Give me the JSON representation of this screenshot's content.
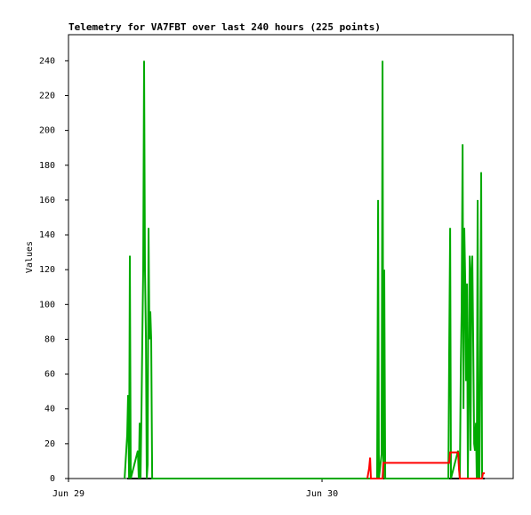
{
  "chart_data": {
    "type": "line",
    "title": "Telemetry for VA7FBT over last 240 hours (225 points)",
    "y_label": "Values",
    "xlim": [
      0,
      42.1
    ],
    "ylim": [
      0,
      255
    ],
    "xticks": [
      {
        "value": 0,
        "label": "Jun 29"
      },
      {
        "value": 24,
        "label": "Jun 30"
      }
    ],
    "yticks": [
      0,
      20,
      40,
      60,
      80,
      100,
      120,
      140,
      160,
      180,
      200,
      220,
      240
    ],
    "series": [
      {
        "color": "#000000",
        "x": [
          5.56,
          39.41
        ],
        "values": [
          0,
          0
        ]
      },
      {
        "color": "#00aa00",
        "x": [
          5.31,
          5.56,
          5.64,
          5.73,
          5.81,
          5.89,
          6.57,
          6.65,
          6.74,
          6.82,
          6.91,
          6.99,
          7.07,
          7.16,
          7.24,
          7.33,
          7.41,
          7.49,
          7.58,
          7.66,
          7.75,
          7.83,
          7.92,
          29.22,
          29.31,
          29.39,
          29.64,
          29.73,
          29.81,
          29.89,
          29.98,
          35.96,
          36.04,
          36.13,
          36.21,
          36.88,
          37.05,
          37.14,
          37.22,
          37.31,
          37.39,
          37.47,
          37.56,
          37.64,
          37.73,
          37.81,
          37.89,
          37.98,
          38.06,
          38.15,
          38.23,
          38.31,
          38.4,
          38.48,
          38.57,
          38.65,
          38.73,
          38.82,
          38.9,
          38.99,
          39.07,
          39.15
        ],
        "values": [
          0,
          25,
          48,
          0,
          128,
          0,
          16,
          0,
          32,
          0,
          40,
          80,
          120,
          240,
          120,
          80,
          0,
          8,
          144,
          80,
          96,
          80,
          0,
          0,
          160,
          0,
          14,
          240,
          0,
          120,
          0,
          0,
          72,
          144,
          0,
          16,
          0,
          64,
          96,
          192,
          40,
          144,
          112,
          56,
          112,
          0,
          56,
          128,
          16,
          120,
          128,
          80,
          20,
          16,
          32,
          0,
          160,
          0,
          0,
          88,
          176,
          0
        ]
      },
      {
        "color": "#ff0000",
        "x": [
          28.29,
          28.46,
          28.55,
          28.63,
          29.73,
          29.81,
          36.04,
          36.13,
          36.88,
          36.97,
          37.05,
          39.15,
          39.24,
          39.41
        ],
        "values": [
          0,
          6,
          12,
          0,
          0,
          9,
          9,
          15,
          15,
          5,
          0,
          0,
          3,
          3
        ]
      }
    ]
  }
}
